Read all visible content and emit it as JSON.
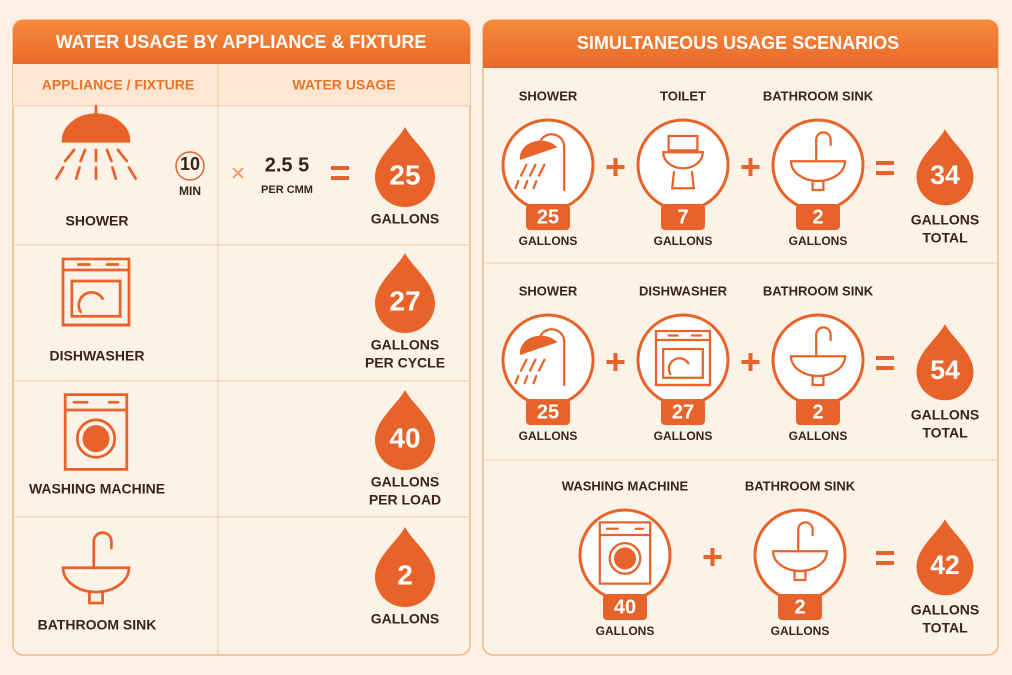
{
  "left": {
    "title": "WATER USAGE BY APPLIANCE & FIXTURE",
    "headers": [
      "APPLIANCE / FIXTURE",
      "WATER USAGE"
    ],
    "rows": [
      {
        "name": "SHOWER",
        "duration": 10,
        "duration_unit": "MIN",
        "rate": "2.5 5",
        "rate_unit": "PER CMM",
        "amount": 25,
        "unit": [
          "GALLONS"
        ]
      },
      {
        "name": "DISHWASHER",
        "amount": 27,
        "unit": [
          "GALLONS",
          "PER CYCLE"
        ]
      },
      {
        "name": "WASHING MACHINE",
        "amount": 40,
        "unit": [
          "GALLONS",
          "PER LOAD"
        ]
      },
      {
        "name": "BATHROOM SINK",
        "amount": 2,
        "unit": [
          "GALLONS"
        ]
      }
    ]
  },
  "right": {
    "title": "SIMULTANEOUS USAGE SCENARIOS",
    "scenarios": [
      {
        "items": [
          {
            "name": "SHOWER",
            "amount": 25,
            "unit": "GALLONS"
          },
          {
            "name": "TOILET",
            "amount": 7,
            "unit": "GALLONS"
          },
          {
            "name": "BATHROOM SINK",
            "amount": 2,
            "unit": "GALLONS"
          }
        ],
        "total": 34,
        "total_unit": [
          "GALLONS",
          "TOTAL"
        ]
      },
      {
        "items": [
          {
            "name": "SHOWER",
            "amount": 25,
            "unit": "GALLONS"
          },
          {
            "name": "DISHWASHER",
            "amount": 27,
            "unit": "GALLONS"
          },
          {
            "name": "BATHROOM SINK",
            "amount": 2,
            "unit": "GALLONS"
          }
        ],
        "total": 54,
        "total_unit": [
          "GALLONS",
          "TOTAL"
        ]
      },
      {
        "items": [
          {
            "name": "WASHING MACHINE",
            "amount": 40,
            "unit": "GALLONS"
          },
          {
            "name": "BATHROOM SINK",
            "amount": 2,
            "unit": "GALLONS"
          }
        ],
        "total": 42,
        "total_unit": [
          "GALLONS",
          "TOTAL"
        ]
      }
    ]
  }
}
